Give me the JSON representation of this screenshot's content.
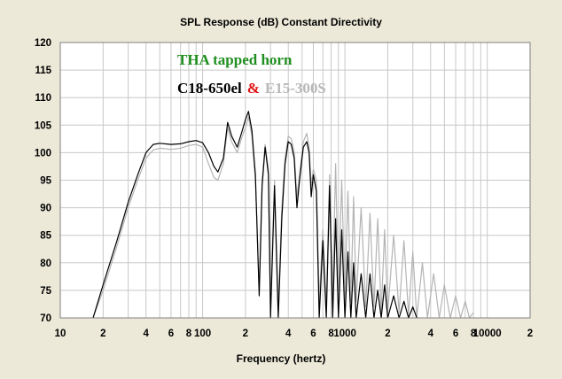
{
  "chart_data": {
    "type": "line",
    "title": "SPL Response (dB)   Constant Directivity",
    "xlabel": "Frequency (hertz)",
    "ylabel": "",
    "xscale": "log",
    "xlim": [
      10,
      20000
    ],
    "ylim": [
      70,
      120
    ],
    "grid": true,
    "x_tick_labels": [
      {
        "value": 10,
        "label": "10"
      },
      {
        "value": 20,
        "label": "2"
      },
      {
        "value": 40,
        "label": "4"
      },
      {
        "value": 60,
        "label": "6"
      },
      {
        "value": 80,
        "label": "8"
      },
      {
        "value": 100,
        "label": "100"
      },
      {
        "value": 200,
        "label": "2"
      },
      {
        "value": 400,
        "label": "4"
      },
      {
        "value": 600,
        "label": "6"
      },
      {
        "value": 800,
        "label": "8"
      },
      {
        "value": 1000,
        "label": "1000"
      },
      {
        "value": 2000,
        "label": "2"
      },
      {
        "value": 4000,
        "label": "4"
      },
      {
        "value": 6000,
        "label": "6"
      },
      {
        "value": 8000,
        "label": "8"
      },
      {
        "value": 10000,
        "label": "10000"
      },
      {
        "value": 20000,
        "label": "2"
      }
    ],
    "y_ticks": [
      70,
      75,
      80,
      85,
      90,
      95,
      100,
      105,
      110,
      115,
      120
    ],
    "annotations": {
      "line1": "THA tapped horn",
      "line2_part1": "C18-650el",
      "line2_amp": "&",
      "line2_part2": "E15-300S"
    },
    "series": [
      {
        "name": "C18-650el",
        "color": "#000000",
        "x": [
          17,
          20,
          25,
          30,
          35,
          40,
          45,
          50,
          60,
          70,
          80,
          90,
          100,
          110,
          120,
          128,
          140,
          150,
          160,
          175,
          190,
          200,
          210,
          222,
          235,
          250,
          262,
          275,
          290,
          300,
          320,
          340,
          360,
          380,
          400,
          420,
          440,
          460,
          480,
          510,
          540,
          560,
          580,
          600,
          630,
          660,
          700,
          740,
          780,
          820,
          860,
          900,
          950,
          1000,
          1050,
          1100,
          1150,
          1200,
          1300,
          1400,
          1500,
          1600,
          1700,
          1800,
          1900,
          2000,
          2200,
          2400,
          2600,
          2800,
          3000,
          3200
        ],
        "y": [
          70,
          76,
          84,
          91,
          96,
          100,
          101.5,
          101.7,
          101.5,
          101.6,
          102,
          102.2,
          101.8,
          100,
          97.5,
          96.5,
          99,
          105.5,
          103,
          101,
          104,
          106,
          107.5,
          104,
          96,
          74,
          94,
          101,
          96,
          70,
          94,
          70,
          88,
          98,
          102,
          101.5,
          99,
          90,
          95,
          101,
          102,
          100,
          92,
          96,
          93,
          70,
          84,
          70,
          94,
          70,
          88,
          70,
          86,
          70,
          82,
          70,
          80,
          70,
          78,
          70,
          78,
          70,
          75,
          70,
          76,
          70,
          74,
          70,
          73,
          70,
          72,
          70
        ]
      },
      {
        "name": "E15-300S",
        "color": "#b4b4b4",
        "x": [
          17,
          20,
          25,
          30,
          35,
          40,
          45,
          50,
          60,
          70,
          80,
          90,
          100,
          110,
          120,
          128,
          140,
          150,
          160,
          175,
          190,
          200,
          210,
          222,
          235,
          250,
          262,
          275,
          290,
          300,
          320,
          340,
          360,
          380,
          400,
          420,
          440,
          460,
          480,
          510,
          540,
          560,
          580,
          600,
          630,
          660,
          700,
          740,
          780,
          820,
          860,
          900,
          950,
          1000,
          1050,
          1100,
          1150,
          1200,
          1300,
          1400,
          1500,
          1600,
          1700,
          1800,
          1900,
          2000,
          2200,
          2400,
          2600,
          2800,
          3000,
          3200,
          3500,
          3800,
          4200,
          4600,
          5000,
          5500,
          6000,
          6500,
          7000,
          7500,
          8000
        ],
        "y": [
          70,
          75,
          83,
          90,
          95,
          99,
          100.5,
          100.8,
          100.6,
          100.8,
          101.3,
          101.5,
          101,
          98,
          95.5,
          95,
          98,
          104.5,
          102,
          100,
          103,
          104.5,
          106.5,
          103,
          95,
          75,
          95,
          101.5,
          97,
          72,
          95,
          72,
          90,
          99,
          103,
          102.5,
          100,
          92,
          96,
          102,
          103.5,
          101,
          94,
          97,
          95,
          73,
          86,
          72,
          96,
          74,
          98,
          75,
          95,
          74,
          93,
          73,
          92,
          73,
          90,
          72,
          89,
          72,
          88,
          71,
          86,
          71,
          85,
          71,
          84,
          70.5,
          82,
          70,
          80,
          70,
          78,
          70,
          76,
          70,
          74,
          70,
          73,
          70,
          71
        ]
      }
    ]
  }
}
